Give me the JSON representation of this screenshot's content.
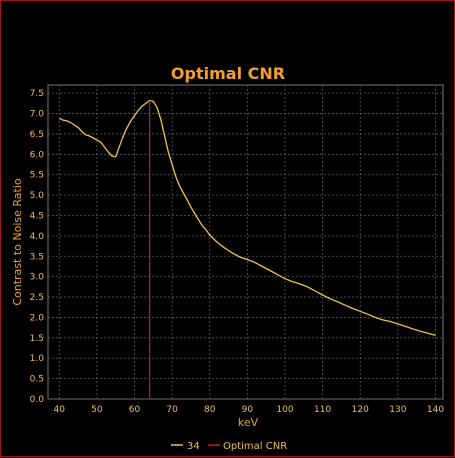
{
  "chart_data": {
    "type": "line",
    "title": "Optimal CNR",
    "xlabel": "keV",
    "ylabel": "Contrast to Noise Ratio",
    "xlim": [
      37,
      142
    ],
    "ylim": [
      0,
      7.7
    ],
    "xticks": [
      "40",
      "50",
      "60",
      "70",
      "80",
      "90",
      "100",
      "110",
      "120",
      "130",
      "140"
    ],
    "yticks": [
      "0.0",
      "0.5",
      "1.0",
      "1.5",
      "2.0",
      "2.5",
      "3.0",
      "3.5",
      "4.0",
      "4.5",
      "5.0",
      "5.5",
      "6.0",
      "6.5",
      "7.0",
      "7.5"
    ],
    "grid": true,
    "legend_position": "bottom",
    "series": [
      {
        "name": "34",
        "color": "#f0c050",
        "x": [
          40,
          41,
          42,
          43,
          44,
          45,
          46,
          47,
          48,
          49,
          50,
          51,
          52,
          53,
          54,
          55,
          56,
          57,
          58,
          59,
          60,
          61,
          62,
          63,
          64,
          65,
          66,
          67,
          68,
          69,
          70,
          71,
          72,
          73,
          74,
          75,
          76,
          77,
          78,
          79,
          80,
          82,
          84,
          86,
          88,
          90,
          92,
          94,
          96,
          98,
          100,
          102,
          104,
          106,
          108,
          110,
          112,
          114,
          116,
          118,
          120,
          122,
          124,
          126,
          128,
          130,
          132,
          134,
          136,
          138,
          140
        ],
        "y": [
          6.88,
          6.84,
          6.82,
          6.78,
          6.72,
          6.66,
          6.56,
          6.48,
          6.45,
          6.4,
          6.35,
          6.3,
          6.18,
          6.06,
          5.96,
          5.94,
          6.2,
          6.45,
          6.65,
          6.82,
          6.95,
          7.08,
          7.18,
          7.25,
          7.32,
          7.3,
          7.15,
          6.85,
          6.45,
          6.05,
          5.75,
          5.45,
          5.22,
          5.05,
          4.88,
          4.7,
          4.55,
          4.4,
          4.25,
          4.15,
          4.02,
          3.84,
          3.7,
          3.58,
          3.48,
          3.42,
          3.35,
          3.25,
          3.15,
          3.05,
          2.95,
          2.88,
          2.82,
          2.75,
          2.65,
          2.55,
          2.46,
          2.38,
          2.3,
          2.22,
          2.15,
          2.08,
          2.0,
          1.94,
          1.9,
          1.84,
          1.78,
          1.72,
          1.66,
          1.61,
          1.56
        ]
      },
      {
        "name": "Optimal CNR",
        "color": "#d01818",
        "x": [
          64,
          64
        ],
        "y": [
          0,
          7.32
        ]
      }
    ]
  }
}
